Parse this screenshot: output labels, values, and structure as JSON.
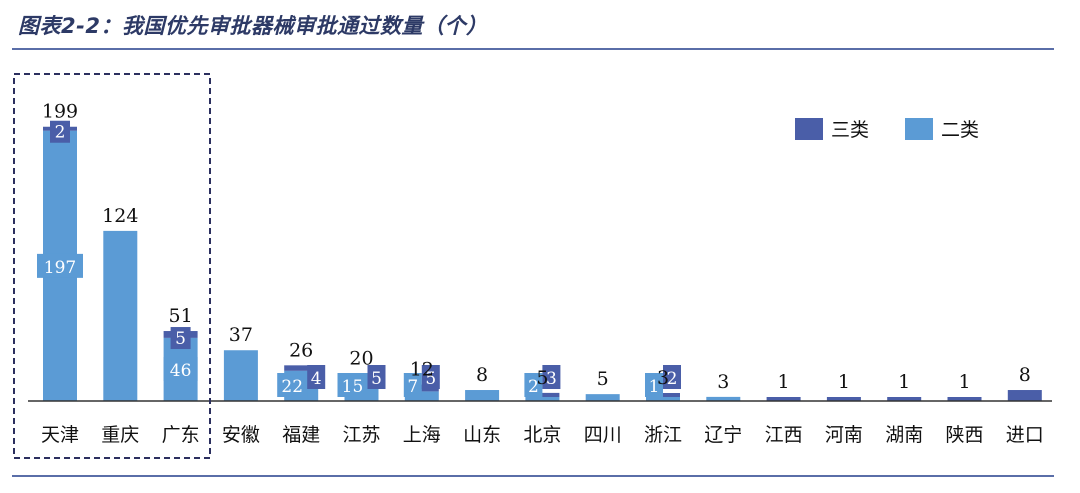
{
  "title": "图表2-2：我国优先审批器械审批通过数量（个）",
  "chart_data": {
    "type": "bar",
    "stacked": true,
    "title": "图表2-2：我国优先审批器械审批通过数量（个）",
    "categories": [
      "天津",
      "重庆",
      "广东",
      "安徽",
      "福建",
      "江苏",
      "上海",
      "山东",
      "北京",
      "四川",
      "浙江",
      "辽宁",
      "江西",
      "河南",
      "湖南",
      "陕西",
      "进口"
    ],
    "series": [
      {
        "name": "二类",
        "color": "#5b9bd5",
        "values": [
          197,
          124,
          46,
          37,
          22,
          15,
          7,
          8,
          2,
          5,
          1,
          3,
          0,
          0,
          0,
          0,
          0
        ]
      },
      {
        "name": "三类",
        "color": "#4a5ea8",
        "values": [
          2,
          0,
          5,
          0,
          4,
          5,
          5,
          0,
          3,
          0,
          2,
          0,
          1,
          1,
          1,
          1,
          8
        ]
      }
    ],
    "totals": [
      199,
      124,
      51,
      37,
      26,
      20,
      12,
      8,
      5,
      5,
      3,
      3,
      1,
      1,
      1,
      1,
      8
    ],
    "segment_labels": {
      "二类": [
        "197",
        "",
        "46",
        "",
        "22",
        "15",
        "7",
        "",
        "2",
        "",
        "1",
        "",
        "",
        "",
        "",
        "",
        ""
      ],
      "三类": [
        "2",
        "",
        "5",
        "",
        "4",
        "5",
        "5",
        "",
        "3",
        "",
        "2",
        "",
        "",
        "",
        "",
        "",
        ""
      ]
    },
    "legend": [
      "三类",
      "二类"
    ],
    "legend_position": "top-right",
    "highlight_box_categories": [
      "天津",
      "重庆",
      "广东"
    ],
    "ylim": [
      0,
      210
    ],
    "grid": false,
    "xlabel": "",
    "ylabel": ""
  }
}
